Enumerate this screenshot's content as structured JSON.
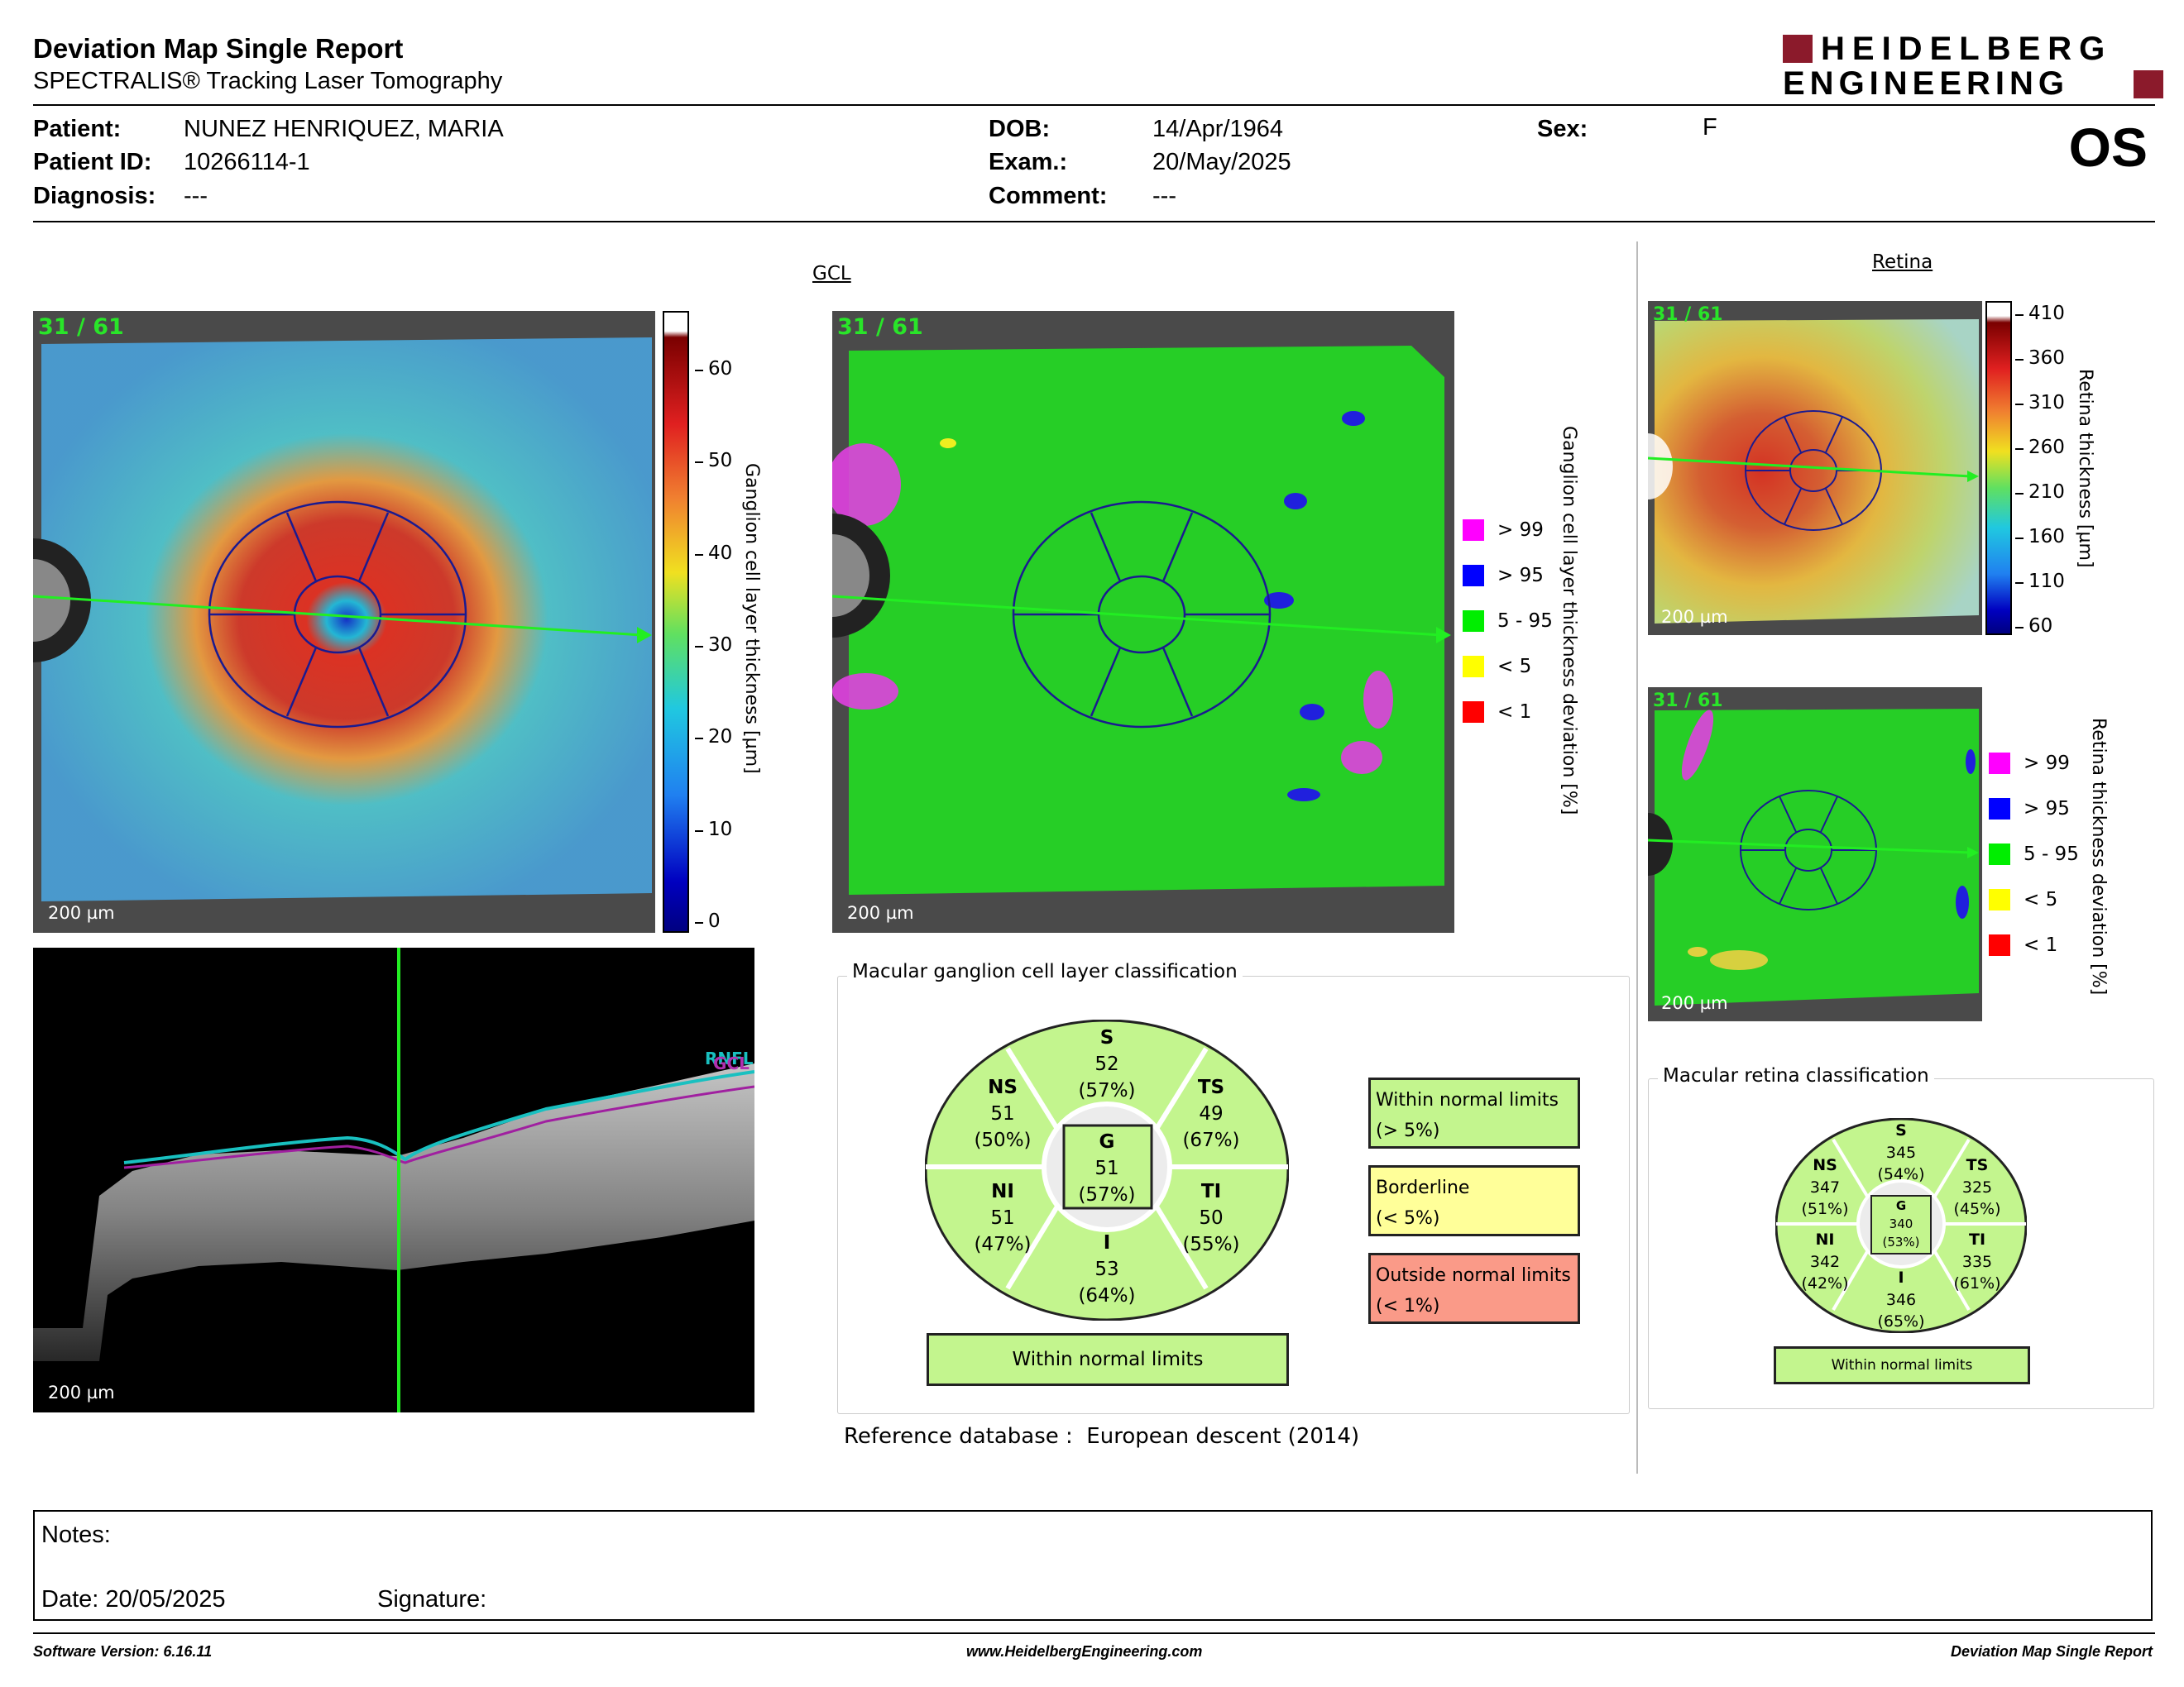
{
  "report": {
    "title": "Deviation Map Single Report",
    "subtitle": "SPECTRALIS® Tracking Laser Tomography",
    "logo_line1": "HEIDELBERG",
    "logo_line2": "ENGINEERING",
    "eye": "OS"
  },
  "patient": {
    "name_label": "Patient:",
    "name": "NUNEZ HENRIQUEZ, MARIA",
    "id_label": "Patient ID:",
    "id": "10266114-1",
    "diagnosis_label": "Diagnosis:",
    "diagnosis": "---",
    "dob_label": "DOB:",
    "dob": "14/Apr/1964",
    "exam_label": "Exam.:",
    "exam": "20/May/2025",
    "comment_label": "Comment:",
    "comment": "---",
    "sex_label": "Sex:",
    "sex": "F"
  },
  "gcl": {
    "title": "GCL",
    "scan_index": "31 / 61",
    "scale": "200 µm",
    "thickness_axis": "Ganglion cell layer thickness [µm]",
    "thickness_ticks": [
      "60",
      "50",
      "40",
      "30",
      "20",
      "10",
      "0"
    ],
    "deviation_axis": "Ganglion cell layer thickness deviation [%]",
    "legend": [
      {
        "label": "> 99",
        "color": "#ff00ff"
      },
      {
        "label": "> 95",
        "color": "#0000ff"
      },
      {
        "label": "5 - 95",
        "color": "#00ee00"
      },
      {
        "label": "< 5",
        "color": "#ffff00"
      },
      {
        "label": "< 1",
        "color": "#ff0000"
      }
    ]
  },
  "bscan": {
    "scale": "200 µm",
    "layer_label_1": "RNFL",
    "layer_label_2": "GCL"
  },
  "retina": {
    "title": "Retina",
    "scan_index": "31 / 61",
    "scale": "200 µm",
    "thickness_axis": "Retina thickness [µm]",
    "thickness_ticks": [
      "410",
      "360",
      "310",
      "260",
      "210",
      "160",
      "110",
      "60"
    ],
    "deviation_axis": "Retina thickness deviation [%]",
    "legend": [
      {
        "label": "> 99",
        "color": "#ff00ff"
      },
      {
        "label": "> 95",
        "color": "#0000ff"
      },
      {
        "label": "5 - 95",
        "color": "#00ee00"
      },
      {
        "label": "< 5",
        "color": "#ffff00"
      },
      {
        "label": "< 1",
        "color": "#ff0000"
      }
    ]
  },
  "gcl_classification": {
    "title": "Macular ganglion cell layer classification",
    "sectors": {
      "S": {
        "label": "S",
        "value": "52",
        "pct": "(57%)"
      },
      "TS": {
        "label": "TS",
        "value": "49",
        "pct": "(67%)"
      },
      "TI": {
        "label": "TI",
        "value": "50",
        "pct": "(55%)"
      },
      "I": {
        "label": "I",
        "value": "53",
        "pct": "(64%)"
      },
      "NI": {
        "label": "NI",
        "value": "51",
        "pct": "(47%)"
      },
      "NS": {
        "label": "NS",
        "value": "51",
        "pct": "(50%)"
      },
      "G": {
        "label": "G",
        "value": "51",
        "pct": "(57%)"
      }
    },
    "result": "Within normal limits",
    "key": [
      {
        "line1": "Within normal limits",
        "line2": "(> 5%)",
        "color": "#c3f58e"
      },
      {
        "line1": "Borderline",
        "line2": "(< 5%)",
        "color": "#ffff99"
      },
      {
        "line1": "Outside normal limits",
        "line2": "(< 1%)",
        "color": "#fa9a88"
      }
    ],
    "reference_label": "Reference database :",
    "reference": "European descent (2014)"
  },
  "retina_classification": {
    "title": "Macular retina classification",
    "sectors": {
      "S": {
        "label": "S",
        "value": "345",
        "pct": "(54%)"
      },
      "TS": {
        "label": "TS",
        "value": "325",
        "pct": "(45%)"
      },
      "TI": {
        "label": "TI",
        "value": "335",
        "pct": "(61%)"
      },
      "I": {
        "label": "I",
        "value": "346",
        "pct": "(65%)"
      },
      "NI": {
        "label": "NI",
        "value": "342",
        "pct": "(42%)"
      },
      "NS": {
        "label": "NS",
        "value": "347",
        "pct": "(51%)"
      },
      "G": {
        "label": "G",
        "value": "340",
        "pct": "(53%)"
      }
    },
    "result": "Within normal limits"
  },
  "notes": {
    "notes_label": "Notes:",
    "date_label": "Date:",
    "date": "20/05/2025",
    "signature_label": "Signature:"
  },
  "footer": {
    "software": "Software Version: 6.16.11",
    "website": "www.HeidelbergEngineering.com",
    "report_name": "Deviation Map Single Report"
  }
}
